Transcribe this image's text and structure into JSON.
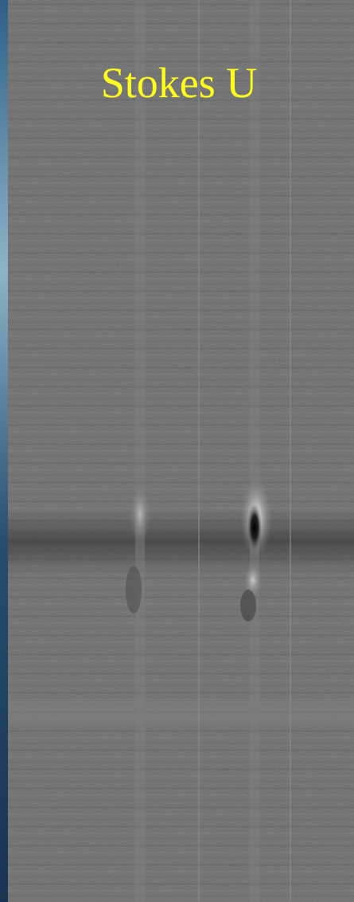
{
  "title": "Stokes U"
}
